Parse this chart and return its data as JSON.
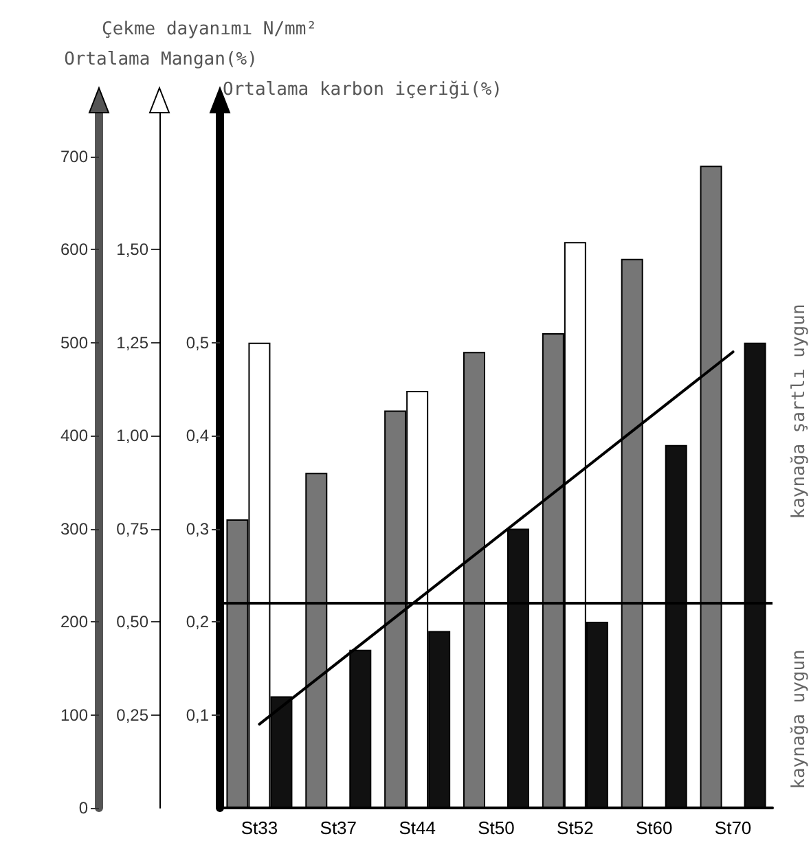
{
  "chart_data": {
    "type": "bar",
    "categories": [
      "St33",
      "St37",
      "St44",
      "St50",
      "St52",
      "St60",
      "St70"
    ],
    "ylabel": "Ortalama karbon içeriği(%)",
    "y2label": "Ortalama Mangan(%)",
    "y3label": "Çekme dayanımı N/mm²",
    "ylim": [
      0,
      0.75
    ],
    "yticks": [
      {
        "value": 0.1,
        "label": "0,1"
      },
      {
        "value": 0.2,
        "label": "0,2"
      },
      {
        "value": 0.3,
        "label": "0,3"
      },
      {
        "value": 0.4,
        "label": "0,4"
      },
      {
        "value": 0.5,
        "label": "0,5"
      }
    ],
    "y2lim": [
      0,
      1.875
    ],
    "y2ticks": [
      {
        "value": 0.25,
        "label": "0,25"
      },
      {
        "value": 0.5,
        "label": "0,50"
      },
      {
        "value": 0.75,
        "label": "0,75"
      },
      {
        "value": 1,
        "label": "1,00"
      },
      {
        "value": 1.25,
        "label": "1,25"
      },
      {
        "value": 1.5,
        "label": "1,50"
      }
    ],
    "y3lim": [
      0,
      750
    ],
    "y3ticks": [
      0,
      100,
      200,
      300,
      400,
      500,
      600,
      700
    ],
    "series": [
      {
        "color": "#767676",
        "axis": "y3",
        "values": [
          310,
          360,
          427,
          490,
          510,
          590,
          690
        ]
      },
      {
        "color": "#ffffff",
        "axis": "y2",
        "values": [
          1.25,
          null,
          1.12,
          null,
          1.52,
          null,
          null
        ]
      },
      {
        "color": "#111111",
        "values": [
          0.12,
          0.17,
          0.19,
          0.3,
          0.2,
          0.39,
          0.5
        ]
      },
      {
        "type": "line",
        "color": "#000000",
        "x": [
          "St33",
          "St70"
        ],
        "values": [
          0.09,
          0.49
        ],
        "marker": "none",
        "line_style": "solid"
      }
    ],
    "ref_lines": [
      {
        "axis": "y",
        "value": 0.22,
        "color": "#000000"
      }
    ],
    "annotations": [
      "kaynağa uygun",
      "kaynağa şartlı uygun"
    ],
    "grid": false
  }
}
